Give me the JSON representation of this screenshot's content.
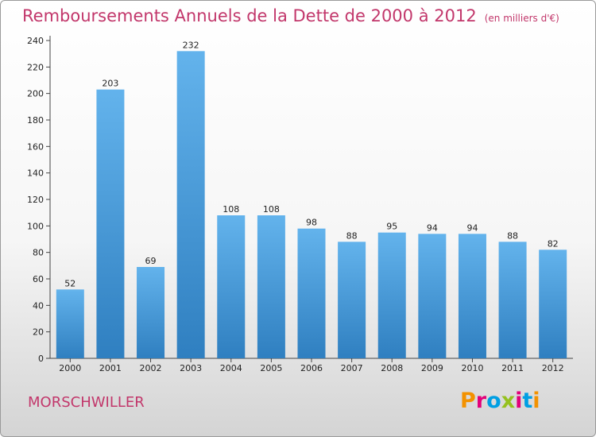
{
  "header": {
    "title": "Remboursements Annuels de la Dette de 2000 à 2012",
    "unit": "(en milliers d'€)"
  },
  "footer": {
    "commune": "MORSCHWILLER",
    "logo_letters": [
      "P",
      "r",
      "o",
      "x",
      "i",
      "t",
      "i"
    ],
    "logo_colors": [
      "#f39200",
      "#e2007a",
      "#009fe3",
      "#95c11f",
      "#e2007a",
      "#009fe3",
      "#f39200"
    ]
  },
  "colors": {
    "bar_top": "#63b3ec",
    "bar_bottom": "#2f7fc0",
    "title": "#c2376b"
  },
  "chart_data": {
    "type": "bar",
    "title": "Remboursements Annuels de la Dette de 2000 à 2012",
    "subtitle": "(en milliers d'€)",
    "xlabel": "",
    "ylabel": "",
    "categories": [
      "2000",
      "2001",
      "2002",
      "2003",
      "2004",
      "2005",
      "2006",
      "2007",
      "2008",
      "2009",
      "2010",
      "2011",
      "2012"
    ],
    "values": [
      52,
      203,
      69,
      232,
      108,
      108,
      98,
      88,
      95,
      94,
      94,
      88,
      82
    ],
    "value_labels": [
      "52",
      "203",
      "69",
      "232",
      "108",
      "108",
      "98",
      "88",
      "95",
      "94",
      "94",
      "88",
      "82"
    ],
    "ylim": [
      0,
      240
    ],
    "yticks": [
      0,
      20,
      40,
      60,
      80,
      100,
      120,
      140,
      160,
      180,
      200,
      220,
      240
    ],
    "grid": false,
    "legend": "none"
  }
}
